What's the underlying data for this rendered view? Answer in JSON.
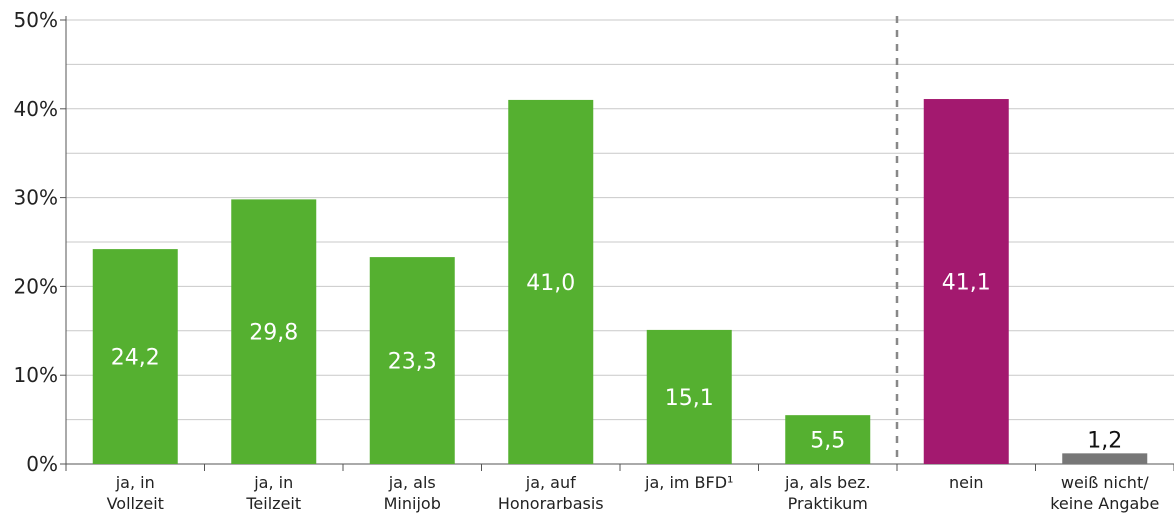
{
  "chart_data": {
    "type": "bar",
    "categories": [
      [
        "ja, in",
        "Vollzeit"
      ],
      [
        "ja, in",
        "Teilzeit"
      ],
      [
        "ja, als",
        "Minijob"
      ],
      [
        "ja, auf",
        "Honorarbasis"
      ],
      [
        "ja, im BFD¹"
      ],
      [
        "ja, als bez.",
        "Praktikum"
      ],
      [
        "nein"
      ],
      [
        "weiß nicht/",
        "keine Angabe"
      ]
    ],
    "values": [
      24.2,
      29.8,
      23.3,
      41.0,
      15.1,
      5.5,
      41.1,
      1.2
    ],
    "value_labels": [
      "24,2",
      "29,8",
      "23,3",
      "41,0",
      "15,1",
      "5,5",
      "41,1",
      "1,2"
    ],
    "bar_colors": [
      "#55b030",
      "#55b030",
      "#55b030",
      "#55b030",
      "#55b030",
      "#55b030",
      "#a3196f",
      "#777777"
    ],
    "value_label_colors": [
      "#ffffff",
      "#ffffff",
      "#ffffff",
      "#ffffff",
      "#ffffff",
      "#ffffff",
      "#ffffff",
      "#111111"
    ],
    "value_label_position": [
      "inside",
      "inside",
      "inside",
      "inside",
      "inside",
      "inside",
      "inside",
      "above"
    ],
    "y_ticks": [
      "0%",
      "10%",
      "20%",
      "30%",
      "40%",
      "50%"
    ],
    "ylim": [
      0,
      50
    ],
    "grid": true,
    "separator_after_index": 5,
    "title": "",
    "xlabel": "",
    "ylabel": ""
  }
}
